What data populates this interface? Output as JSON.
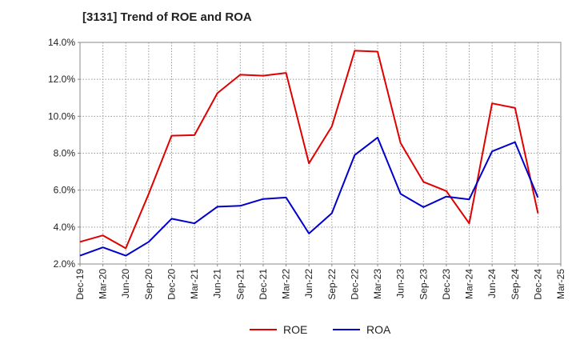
{
  "chart_data": {
    "type": "line",
    "title": "[3131]  Trend of ROE and ROA",
    "categories": [
      "Dec-19",
      "Mar-20",
      "Jun-20",
      "Sep-20",
      "Dec-20",
      "Mar-21",
      "Jun-21",
      "Sep-21",
      "Dec-21",
      "Mar-22",
      "Jun-22",
      "Sep-22",
      "Dec-22",
      "Mar-23",
      "Jun-23",
      "Sep-23",
      "Dec-23",
      "Mar-24",
      "Jun-24",
      "Sep-24",
      "Dec-24",
      "Mar-25"
    ],
    "series": [
      {
        "name": "ROE",
        "color": "#e00000",
        "values": [
          3.2,
          3.55,
          2.85,
          5.8,
          8.95,
          8.98,
          11.25,
          12.25,
          12.2,
          12.35,
          7.45,
          9.45,
          13.55,
          13.5,
          8.55,
          6.45,
          5.95,
          4.2,
          10.7,
          10.45,
          4.75,
          null
        ]
      },
      {
        "name": "ROA",
        "color": "#0000cc",
        "values": [
          2.45,
          2.9,
          2.45,
          3.2,
          4.45,
          4.2,
          5.1,
          5.15,
          5.52,
          5.6,
          3.65,
          4.75,
          7.9,
          8.85,
          5.8,
          5.08,
          5.65,
          5.5,
          8.1,
          8.6,
          5.6,
          null
        ]
      }
    ],
    "ylim": [
      2.0,
      14.0
    ],
    "yticks": [
      "2.0%",
      "4.0%",
      "6.0%",
      "8.0%",
      "10.0%",
      "12.0%",
      "14.0%"
    ],
    "xlabel": "",
    "ylabel": "",
    "grid": true,
    "legend": "bottom-center"
  }
}
